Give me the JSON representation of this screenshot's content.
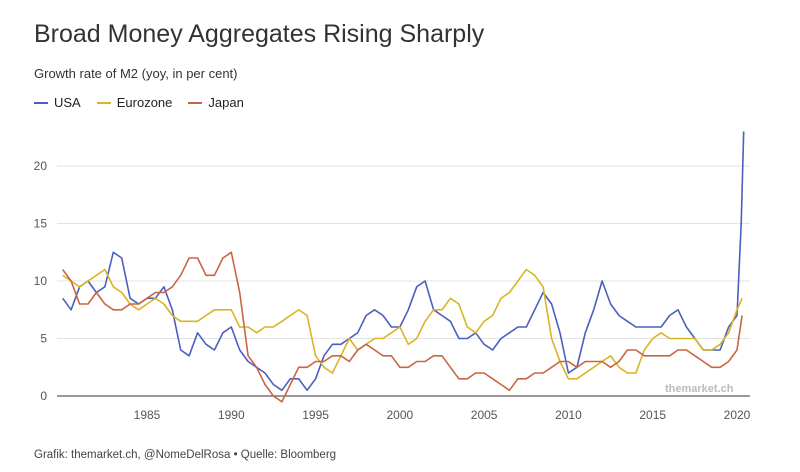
{
  "title": "Broad Money Aggregates Rising Sharply",
  "subtitle": "Growth rate of M2 (yoy, in per cent)",
  "footer": "Grafik: themarket.ch, @NomeDelRosa • Quelle: Bloomberg",
  "watermark": "themarket.ch",
  "chart_data": {
    "type": "line",
    "title": "Broad Money Aggregates Rising Sharply",
    "subtitle": "Growth rate of M2 (yoy, in per cent)",
    "xlabel": "",
    "ylabel": "",
    "xlim": [
      1980,
      2021
    ],
    "ylim": [
      0,
      25
    ],
    "x_ticks": [
      1985,
      1990,
      1995,
      2000,
      2005,
      2010,
      2015,
      2020
    ],
    "y_ticks": [
      0,
      5,
      10,
      15,
      20
    ],
    "grid": "horizontal",
    "legend_position": "top-left",
    "series": [
      {
        "name": "USA",
        "color": "#4a5fc1",
        "x": [
          1980.0,
          1980.5,
          1981.0,
          1981.5,
          1982.0,
          1982.5,
          1983.0,
          1983.5,
          1984.0,
          1984.5,
          1985.0,
          1985.5,
          1986.0,
          1986.5,
          1987.0,
          1987.5,
          1988.0,
          1988.5,
          1989.0,
          1989.5,
          1990.0,
          1990.5,
          1991.0,
          1991.5,
          1992.0,
          1992.5,
          1993.0,
          1993.5,
          1994.0,
          1994.5,
          1995.0,
          1995.5,
          1996.0,
          1996.5,
          1997.0,
          1997.5,
          1998.0,
          1998.5,
          1999.0,
          1999.5,
          2000.0,
          2000.5,
          2001.0,
          2001.5,
          2002.0,
          2002.5,
          2003.0,
          2003.5,
          2004.0,
          2004.5,
          2005.0,
          2005.5,
          2006.0,
          2006.5,
          2007.0,
          2007.5,
          2008.0,
          2008.5,
          2009.0,
          2009.5,
          2010.0,
          2010.5,
          2011.0,
          2011.5,
          2012.0,
          2012.5,
          2013.0,
          2013.5,
          2014.0,
          2014.5,
          2015.0,
          2015.5,
          2016.0,
          2016.5,
          2017.0,
          2017.5,
          2018.0,
          2018.5,
          2019.0,
          2019.5,
          2020.0,
          2020.25,
          2020.4
        ],
        "values": [
          8.5,
          7.5,
          9.5,
          10.0,
          9.0,
          9.5,
          12.5,
          12.0,
          8.5,
          8.0,
          8.5,
          8.5,
          9.5,
          7.5,
          4.0,
          3.5,
          5.5,
          4.5,
          4.0,
          5.5,
          6.0,
          4.0,
          3.0,
          2.5,
          2.0,
          1.0,
          0.5,
          1.5,
          1.5,
          0.5,
          1.5,
          3.5,
          4.5,
          4.5,
          5.0,
          5.5,
          7.0,
          7.5,
          7.0,
          6.0,
          6.0,
          7.5,
          9.5,
          10.0,
          7.5,
          7.0,
          6.5,
          5.0,
          5.0,
          5.5,
          4.5,
          4.0,
          5.0,
          5.5,
          6.0,
          6.0,
          7.5,
          9.0,
          8.0,
          5.5,
          2.0,
          2.5,
          5.5,
          7.5,
          10.0,
          8.0,
          7.0,
          6.5,
          6.0,
          6.0,
          6.0,
          6.0,
          7.0,
          7.5,
          6.0,
          5.0,
          4.0,
          4.0,
          4.0,
          6.0,
          7.0,
          15.0,
          23.0
        ]
      },
      {
        "name": "Eurozone",
        "color": "#d9b425",
        "x": [
          1980.0,
          1980.5,
          1981.0,
          1981.5,
          1982.0,
          1982.5,
          1983.0,
          1983.5,
          1984.0,
          1984.5,
          1985.0,
          1985.5,
          1986.0,
          1986.5,
          1987.0,
          1987.5,
          1988.0,
          1988.5,
          1989.0,
          1989.5,
          1990.0,
          1990.5,
          1991.0,
          1991.5,
          1992.0,
          1992.5,
          1993.0,
          1993.5,
          1994.0,
          1994.5,
          1995.0,
          1995.5,
          1996.0,
          1996.5,
          1997.0,
          1997.5,
          1998.0,
          1998.5,
          1999.0,
          1999.5,
          2000.0,
          2000.5,
          2001.0,
          2001.5,
          2002.0,
          2002.5,
          2003.0,
          2003.5,
          2004.0,
          2004.5,
          2005.0,
          2005.5,
          2006.0,
          2006.5,
          2007.0,
          2007.5,
          2008.0,
          2008.5,
          2009.0,
          2009.5,
          2010.0,
          2010.5,
          2011.0,
          2011.5,
          2012.0,
          2012.5,
          2013.0,
          2013.5,
          2014.0,
          2014.5,
          2015.0,
          2015.5,
          2016.0,
          2016.5,
          2017.0,
          2017.5,
          2018.0,
          2018.5,
          2019.0,
          2019.5,
          2020.0,
          2020.3
        ],
        "values": [
          10.5,
          10.0,
          9.5,
          10.0,
          10.5,
          11.0,
          9.5,
          9.0,
          8.0,
          7.5,
          8.0,
          8.5,
          8.0,
          7.0,
          6.5,
          6.5,
          6.5,
          7.0,
          7.5,
          7.5,
          7.5,
          6.0,
          6.0,
          5.5,
          6.0,
          6.0,
          6.5,
          7.0,
          7.5,
          7.0,
          3.5,
          2.5,
          2.0,
          3.5,
          5.0,
          4.0,
          4.5,
          5.0,
          5.0,
          5.5,
          6.0,
          4.5,
          5.0,
          6.5,
          7.5,
          7.5,
          8.5,
          8.0,
          6.0,
          5.5,
          6.5,
          7.0,
          8.5,
          9.0,
          10.0,
          11.0,
          10.5,
          9.5,
          5.0,
          3.0,
          1.5,
          1.5,
          2.0,
          2.5,
          3.0,
          3.5,
          2.5,
          2.0,
          2.0,
          4.0,
          5.0,
          5.5,
          5.0,
          5.0,
          5.0,
          5.0,
          4.0,
          4.0,
          4.5,
          5.5,
          7.5,
          8.5
        ]
      },
      {
        "name": "Japan",
        "color": "#c86642",
        "x": [
          1980.0,
          1980.5,
          1981.0,
          1981.5,
          1982.0,
          1982.5,
          1983.0,
          1983.5,
          1984.0,
          1984.5,
          1985.0,
          1985.5,
          1986.0,
          1986.5,
          1987.0,
          1987.5,
          1988.0,
          1988.5,
          1989.0,
          1989.5,
          1990.0,
          1990.5,
          1991.0,
          1991.5,
          1992.0,
          1992.5,
          1993.0,
          1993.5,
          1994.0,
          1994.5,
          1995.0,
          1995.5,
          1996.0,
          1996.5,
          1997.0,
          1997.5,
          1998.0,
          1998.5,
          1999.0,
          1999.5,
          2000.0,
          2000.5,
          2001.0,
          2001.5,
          2002.0,
          2002.5,
          2003.0,
          2003.5,
          2004.0,
          2004.5,
          2005.0,
          2005.5,
          2006.0,
          2006.5,
          2007.0,
          2007.5,
          2008.0,
          2008.5,
          2009.0,
          2009.5,
          2010.0,
          2010.5,
          2011.0,
          2011.5,
          2012.0,
          2012.5,
          2013.0,
          2013.5,
          2014.0,
          2014.5,
          2015.0,
          2015.5,
          2016.0,
          2016.5,
          2017.0,
          2017.5,
          2018.0,
          2018.5,
          2019.0,
          2019.5,
          2020.0,
          2020.3
        ],
        "values": [
          11.0,
          10.0,
          8.0,
          8.0,
          9.0,
          8.0,
          7.5,
          7.5,
          8.0,
          8.0,
          8.5,
          9.0,
          9.0,
          9.5,
          10.5,
          12.0,
          12.0,
          10.5,
          10.5,
          12.0,
          12.5,
          9.0,
          3.5,
          2.5,
          1.0,
          0.0,
          -0.5,
          1.0,
          2.5,
          2.5,
          3.0,
          3.0,
          3.5,
          3.5,
          3.0,
          4.0,
          4.5,
          4.0,
          3.5,
          3.5,
          2.5,
          2.5,
          3.0,
          3.0,
          3.5,
          3.5,
          2.5,
          1.5,
          1.5,
          2.0,
          2.0,
          1.5,
          1.0,
          0.5,
          1.5,
          1.5,
          2.0,
          2.0,
          2.5,
          3.0,
          3.0,
          2.5,
          3.0,
          3.0,
          3.0,
          2.5,
          3.0,
          4.0,
          4.0,
          3.5,
          3.5,
          3.5,
          3.5,
          4.0,
          4.0,
          3.5,
          3.0,
          2.5,
          2.5,
          3.0,
          4.0,
          7.0
        ]
      }
    ]
  }
}
